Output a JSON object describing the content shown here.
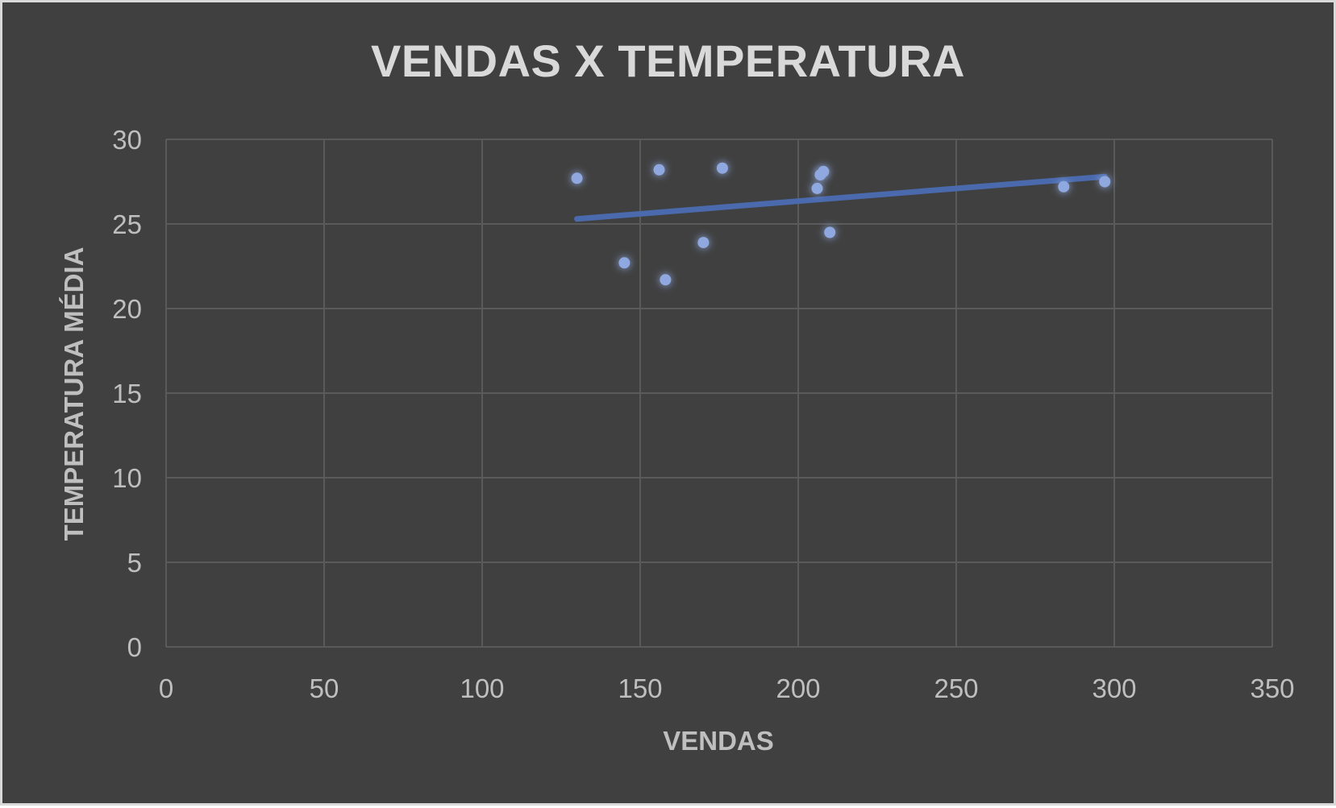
{
  "chart_data": {
    "type": "scatter",
    "title": "VENDAS X TEMPERATURA",
    "xlabel": "VENDAS",
    "ylabel": "TEMPERATURA MÉDIA",
    "xlim": [
      0,
      350
    ],
    "ylim": [
      0,
      30
    ],
    "xticks": [
      0,
      50,
      100,
      150,
      200,
      250,
      300,
      350
    ],
    "yticks": [
      0,
      5,
      10,
      15,
      20,
      25,
      30
    ],
    "grid": true,
    "legend": "none",
    "series": [
      {
        "points": [
          {
            "x": 130,
            "y": 27.7
          },
          {
            "x": 145,
            "y": 22.7
          },
          {
            "x": 156,
            "y": 28.2
          },
          {
            "x": 158,
            "y": 21.7
          },
          {
            "x": 170,
            "y": 23.9
          },
          {
            "x": 176,
            "y": 28.3
          },
          {
            "x": 206,
            "y": 27.1
          },
          {
            "x": 207,
            "y": 27.9
          },
          {
            "x": 208,
            "y": 28.1
          },
          {
            "x": 210,
            "y": 24.5
          },
          {
            "x": 284,
            "y": 27.2
          },
          {
            "x": 297,
            "y": 27.5
          }
        ]
      }
    ],
    "trendline": {
      "type": "linear",
      "x_start": 130,
      "y_start": 25.3,
      "x_end": 297,
      "y_end": 27.8
    },
    "colors": {
      "background": "#404040",
      "grid": "#5a5a5a",
      "marker": "#8fa9e0",
      "trendline": "#4a6aad",
      "text": "#bfbfbf",
      "title": "#d9d9d9"
    }
  }
}
